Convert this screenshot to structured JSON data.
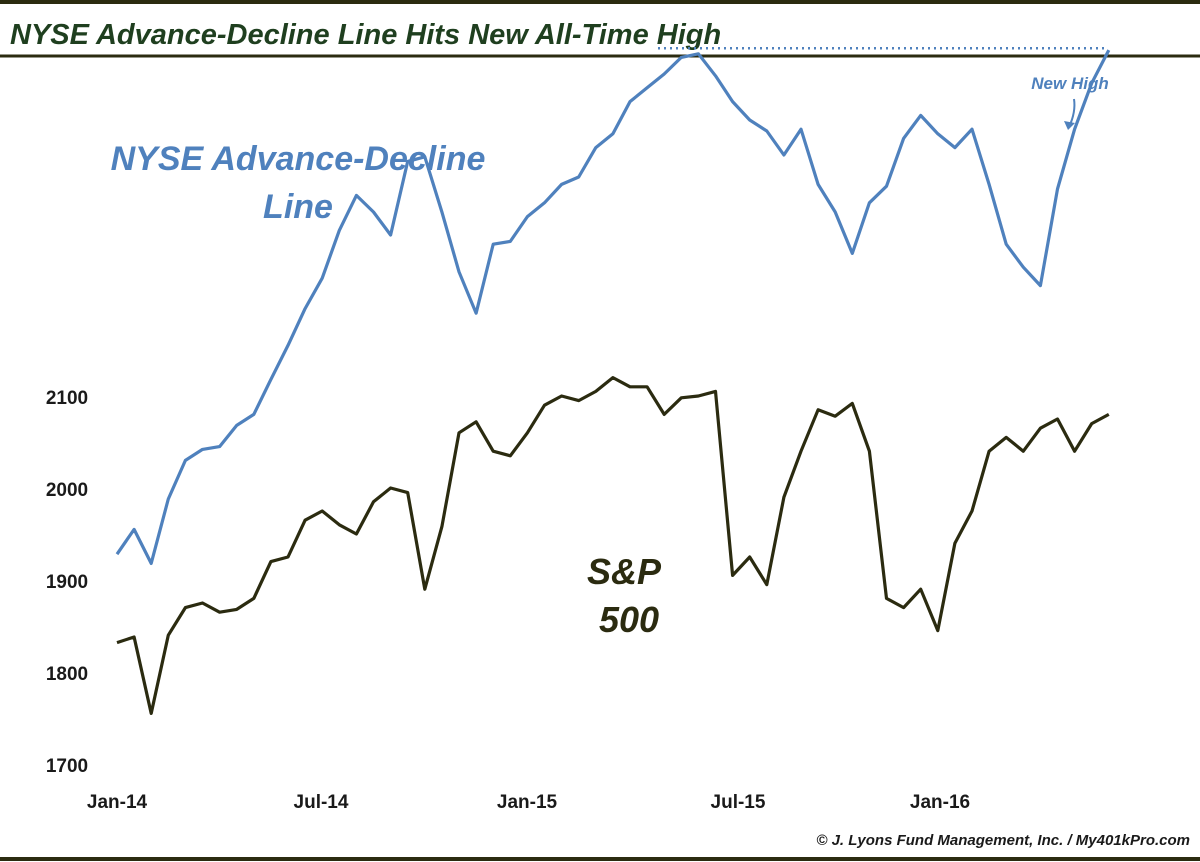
{
  "chart_data": {
    "type": "line",
    "title": "NYSE Advance-Decline Line Hits New All-Time High",
    "xlabel": "",
    "ylabel": "",
    "x_tick_labels": [
      "Jan-14",
      "Jul-14",
      "Jan-15",
      "Jul-15",
      "Jan-16"
    ],
    "y_tick_labels": [
      "2100",
      "2000",
      "1900",
      "1800",
      "1700"
    ],
    "y_ticks": [
      2100,
      2000,
      1900,
      1800,
      1700
    ],
    "ylim": [
      1700,
      2100
    ],
    "grid": false,
    "series": [
      {
        "name": "NYSE Advance-Decline Line",
        "label_lines": [
          "NYSE Advance-Decline",
          "Line"
        ],
        "color": "#4F81BD",
        "axis": "unlabeled",
        "x": [
          0,
          0.5,
          1,
          1.5,
          2,
          2.5,
          3,
          3.5,
          4,
          4.5,
          5,
          5.5,
          6,
          6.5,
          7,
          7.5,
          8,
          8.5,
          9,
          9.5,
          10,
          10.5,
          11,
          11.5,
          12,
          12.5,
          13,
          13.5,
          14,
          14.5,
          15,
          15.5,
          16,
          16.5,
          17,
          17.5,
          18,
          18.5,
          19,
          19.5,
          20,
          20.5,
          21,
          21.5,
          22,
          22.5,
          23,
          23.5,
          24,
          24.5,
          25,
          25.5,
          26,
          26.5,
          27,
          27.5,
          28,
          28.5,
          29
        ],
        "values": [
          1928,
          1955,
          1918,
          1988,
          2030,
          2042,
          2045,
          2068,
          2080,
          2118,
          2155,
          2195,
          2228,
          2280,
          2318,
          2300,
          2275,
          2355,
          2360,
          2300,
          2235,
          2190,
          2265,
          2268,
          2295,
          2310,
          2330,
          2338,
          2370,
          2385,
          2420,
          2435,
          2450,
          2468,
          2472,
          2448,
          2420,
          2400,
          2388,
          2362,
          2390,
          2330,
          2300,
          2255,
          2310,
          2328,
          2380,
          2405,
          2385,
          2370,
          2390,
          2330,
          2265,
          2240,
          2220,
          2325,
          2390,
          2440,
          2476
        ]
      },
      {
        "name": "S&P 500",
        "label_lines": [
          "S&P",
          "500"
        ],
        "color": "#2B2B10",
        "axis": "left",
        "x": [
          0,
          0.5,
          1,
          1.5,
          2,
          2.5,
          3,
          3.5,
          4,
          4.5,
          5,
          5.5,
          6,
          6.5,
          7,
          7.5,
          8,
          8.5,
          9,
          9.5,
          10,
          10.5,
          11,
          11.5,
          12,
          12.5,
          13,
          13.5,
          14,
          14.5,
          15,
          15.5,
          16,
          16.5,
          17,
          17.5,
          18,
          18.5,
          19,
          19.5,
          20,
          20.5,
          21,
          21.5,
          22,
          22.5,
          23,
          23.5,
          24,
          24.5,
          25,
          25.5,
          26,
          26.5,
          27,
          27.5,
          28,
          28.5,
          29
        ],
        "values": [
          1832,
          1838,
          1755,
          1840,
          1870,
          1875,
          1865,
          1868,
          1880,
          1920,
          1925,
          1965,
          1975,
          1960,
          1950,
          1985,
          2000,
          1995,
          1890,
          1958,
          2060,
          2072,
          2040,
          2035,
          2060,
          2090,
          2100,
          2095,
          2105,
          2120,
          2110,
          2110,
          2080,
          2098,
          2100,
          2105,
          1905,
          1925,
          1895,
          1990,
          2040,
          2085,
          2078,
          2092,
          2040,
          1880,
          1870,
          1890,
          1845,
          1940,
          1975,
          2040,
          2055,
          2040,
          2065,
          2075,
          2040,
          2070,
          2080
        ]
      }
    ],
    "annotations": [
      {
        "text": "New High",
        "target_series": "NYSE Advance-Decline Line",
        "line": "dotted horizontal at prior peak"
      }
    ],
    "ad_peak_ref": 2478
  },
  "footer": {
    "copyright": "© J. Lyons Fund Management, Inc. / My401kPro.com"
  },
  "colors": {
    "title_text": "#1F3F1F",
    "border_line": "#2B2B10",
    "ad_line": "#4F81BD",
    "spx_line": "#2B2B10"
  }
}
